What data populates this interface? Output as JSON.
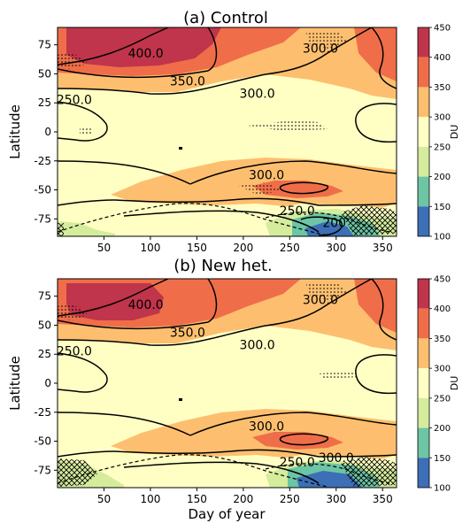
{
  "figure": {
    "panels": [
      {
        "title": "(a)      Control",
        "ylabel": "Latitude",
        "xlabel": "",
        "contour_labels": [
          {
            "text": "400.0",
            "day": 95,
            "lat": 68
          },
          {
            "text": "350.0",
            "day": 140,
            "lat": 44
          },
          {
            "text": "300.0",
            "day": 215,
            "lat": 33
          },
          {
            "text": "300.0",
            "day": 283,
            "lat": 72
          },
          {
            "text": "250.0",
            "day": 18,
            "lat": 28
          },
          {
            "text": "300.0",
            "day": 225,
            "lat": -37
          },
          {
            "text": "250.0",
            "day": 258,
            "lat": -68
          },
          {
            "text": "200",
            "day": 298,
            "lat": -78
          }
        ]
      },
      {
        "title": "(b)      New het.",
        "ylabel": "Latitude",
        "xlabel": "Day of year",
        "contour_labels": [
          {
            "text": "400.0",
            "day": 95,
            "lat": 68
          },
          {
            "text": "350.0",
            "day": 140,
            "lat": 44
          },
          {
            "text": "300.0",
            "day": 215,
            "lat": 33
          },
          {
            "text": "300.0",
            "day": 283,
            "lat": 72
          },
          {
            "text": "250.0",
            "day": 18,
            "lat": 28
          },
          {
            "text": "300.0",
            "day": 225,
            "lat": -37
          },
          {
            "text": "250.0",
            "day": 258,
            "lat": -68
          },
          {
            "text": "300.0",
            "day": 300,
            "lat": -64
          }
        ]
      }
    ]
  },
  "chart_data": {
    "type": "heatmap",
    "xlim": [
      0,
      365
    ],
    "ylim": [
      -90,
      90
    ],
    "x_ticks": [
      50,
      100,
      150,
      200,
      250,
      300,
      350
    ],
    "y_ticks": [
      75,
      50,
      25,
      0,
      -25,
      -50,
      -75
    ],
    "colorbar": {
      "label": "DU",
      "ticks": [
        450,
        400,
        350,
        300,
        250,
        200,
        150,
        100
      ],
      "bins": [
        {
          "from": 400,
          "to": 450,
          "color": "#c0354b"
        },
        {
          "from": 350,
          "to": 400,
          "color": "#ef6e49"
        },
        {
          "from": 300,
          "to": 350,
          "color": "#fdbf6f"
        },
        {
          "from": 250,
          "to": 300,
          "color": "#ffffc4"
        },
        {
          "from": 200,
          "to": 250,
          "color": "#d4ec9c"
        },
        {
          "from": 150,
          "to": 200,
          "color": "#6cc5a4"
        },
        {
          "from": 100,
          "to": 150,
          "color": "#3c6fb6"
        }
      ]
    },
    "contour_levels": [
      200,
      250,
      300,
      350,
      400
    ]
  }
}
